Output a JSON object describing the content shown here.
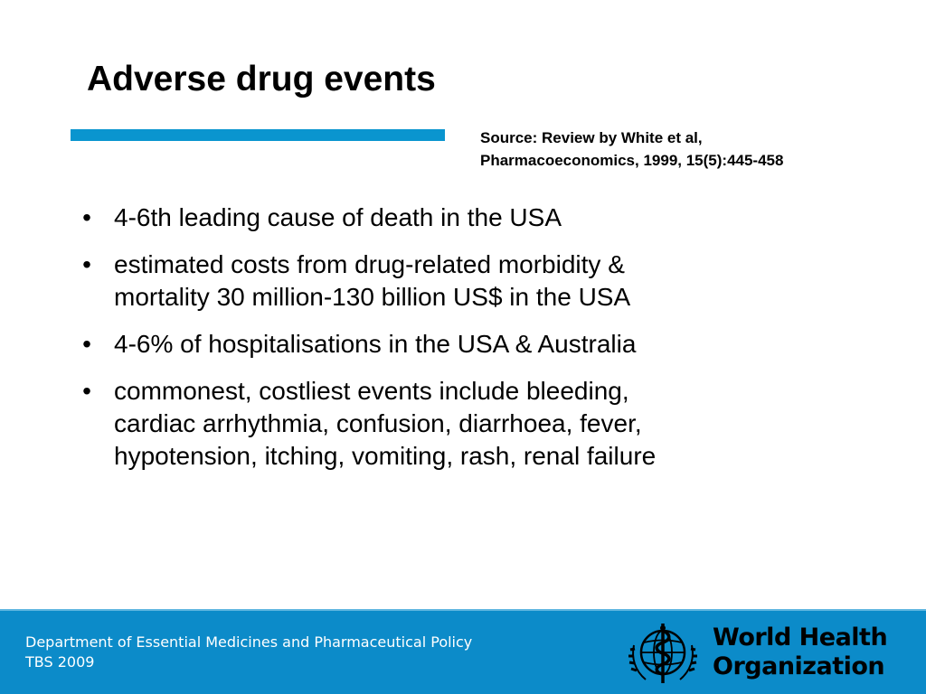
{
  "title": "Adverse drug events",
  "source": {
    "line1": "Source:  Review by White et al,",
    "line2": "Pharmacoeconomics, 1999, 15(5):445-458"
  },
  "bullets": [
    {
      "lines": [
        "4-6th leading cause of death in the USA"
      ]
    },
    {
      "lines": [
        "estimated costs from drug-related morbidity &",
        "mortality 30 million-130 billion US$ in the USA"
      ]
    },
    {
      "lines": [
        "4-6% of hospitalisations in the USA & Australia"
      ]
    },
    {
      "lines": [
        "commonest, costliest events include bleeding,",
        "cardiac arrhythmia, confusion, diarrhoea, fever,",
        "hypotension, itching, vomiting, rash, renal failure"
      ]
    }
  ],
  "bullet_symbol": "•",
  "footer": {
    "line1": "Department of Essential Medicines and Pharmaceutical Policy",
    "line2": "TBS 2009"
  },
  "logo": {
    "icon": "who-emblem-icon",
    "line1": "World Health",
    "line2": "Organization"
  },
  "colors": {
    "accent_bar": "#0a95cf",
    "footer_band": "#0c8bc9",
    "footer_text": "#ffffff",
    "body_text": "#000000"
  }
}
